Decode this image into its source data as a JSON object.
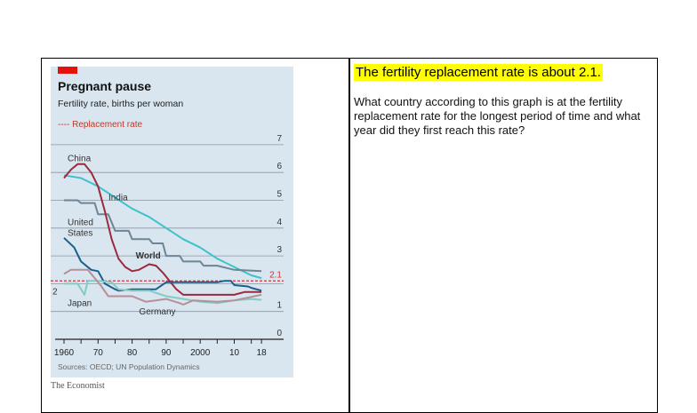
{
  "slide": {
    "highlight": "The fertility replacement rate is about 2.1.",
    "question": "What country according to this graph is at the fertility replacement rate for the longest period of time and what year did they  first reach this rate?",
    "credit": "The Economist"
  },
  "chart_data": {
    "type": "line",
    "title": "Pregnant pause",
    "subtitle": "Fertility rate, births per woman",
    "legend_label": "---- Replacement rate",
    "replacement_rate": 2.1,
    "replacement_label": "2.1",
    "source": "Sources: OECD; UN Population Dynamics",
    "xlim": [
      1960,
      2018
    ],
    "ylim": [
      0,
      7
    ],
    "x_ticks": [
      1960,
      1965,
      1970,
      1975,
      1980,
      1985,
      1990,
      1995,
      2000,
      2005,
      2010,
      2015,
      2018
    ],
    "x_tick_labels": [
      {
        "year": 1960,
        "label": "1960"
      },
      {
        "year": 1970,
        "label": "70"
      },
      {
        "year": 1980,
        "label": "80"
      },
      {
        "year": 1990,
        "label": "90"
      },
      {
        "year": 2000,
        "label": "2000"
      },
      {
        "year": 2010,
        "label": "10"
      },
      {
        "year": 2018,
        "label": "18"
      }
    ],
    "y_ticks": [
      0,
      1,
      2,
      3,
      4,
      5,
      6,
      7
    ],
    "y_tick_labels": [
      "0",
      "1",
      "2",
      "3",
      "4",
      "5",
      "6",
      "7"
    ],
    "grid": true,
    "colors": {
      "background": "#d9e5ef",
      "grid": "#8a97a3",
      "replacement": "#d0323a",
      "accent": "#e3120b"
    },
    "series": [
      {
        "name": "India",
        "color": "#3cc3c9",
        "label_at": [
          1972,
          5.0
        ],
        "points": [
          [
            1960,
            5.9
          ],
          [
            1965,
            5.8
          ],
          [
            1970,
            5.5
          ],
          [
            1975,
            5.1
          ],
          [
            1980,
            4.7
          ],
          [
            1985,
            4.4
          ],
          [
            1990,
            4.0
          ],
          [
            1995,
            3.6
          ],
          [
            2000,
            3.3
          ],
          [
            2005,
            2.9
          ],
          [
            2010,
            2.6
          ],
          [
            2015,
            2.3
          ],
          [
            2018,
            2.2
          ]
        ]
      },
      {
        "name": "World",
        "color": "#6e8593",
        "label_at": [
          1980,
          2.9
        ],
        "bold": true,
        "points": [
          [
            1960,
            5.0
          ],
          [
            1964,
            5.0
          ],
          [
            1965,
            4.9
          ],
          [
            1969,
            4.9
          ],
          [
            1970,
            4.5
          ],
          [
            1973,
            4.5
          ],
          [
            1975,
            3.9
          ],
          [
            1979,
            3.9
          ],
          [
            1980,
            3.6
          ],
          [
            1985,
            3.6
          ],
          [
            1986,
            3.45
          ],
          [
            1989,
            3.45
          ],
          [
            1990,
            3.0
          ],
          [
            1994,
            3.0
          ],
          [
            1995,
            2.8
          ],
          [
            2000,
            2.8
          ],
          [
            2001,
            2.65
          ],
          [
            2005,
            2.65
          ],
          [
            2010,
            2.5
          ],
          [
            2018,
            2.45
          ]
        ]
      },
      {
        "name": "China",
        "color": "#9b2a3e",
        "label_at": [
          1960,
          6.4
        ],
        "points": [
          [
            1960,
            5.8
          ],
          [
            1962,
            6.1
          ],
          [
            1964,
            6.3
          ],
          [
            1966,
            6.3
          ],
          [
            1968,
            6.0
          ],
          [
            1970,
            5.5
          ],
          [
            1972,
            4.6
          ],
          [
            1974,
            3.6
          ],
          [
            1976,
            2.9
          ],
          [
            1978,
            2.6
          ],
          [
            1980,
            2.45
          ],
          [
            1982,
            2.5
          ],
          [
            1985,
            2.7
          ],
          [
            1987,
            2.65
          ],
          [
            1989,
            2.4
          ],
          [
            1991,
            2.1
          ],
          [
            1993,
            1.8
          ],
          [
            1995,
            1.6
          ],
          [
            2000,
            1.6
          ],
          [
            2010,
            1.6
          ],
          [
            2013,
            1.7
          ],
          [
            2018,
            1.7
          ]
        ]
      },
      {
        "name": "United States",
        "color": "#1b5e8c",
        "label_at": [
          1960,
          4.1
        ],
        "points": [
          [
            1960,
            3.65
          ],
          [
            1963,
            3.3
          ],
          [
            1965,
            2.8
          ],
          [
            1968,
            2.5
          ],
          [
            1970,
            2.45
          ],
          [
            1972,
            2.0
          ],
          [
            1975,
            1.8
          ],
          [
            1976,
            1.75
          ],
          [
            1980,
            1.8
          ],
          [
            1987,
            1.8
          ],
          [
            1990,
            2.05
          ],
          [
            2000,
            2.05
          ],
          [
            2005,
            2.05
          ],
          [
            2007,
            2.1
          ],
          [
            2009,
            2.1
          ],
          [
            2010,
            1.95
          ],
          [
            2014,
            1.9
          ],
          [
            2015,
            1.85
          ],
          [
            2018,
            1.75
          ]
        ]
      },
      {
        "name": "Japan",
        "color": "#7fcdc4",
        "label_at": [
          1960,
          1.2
        ],
        "points": [
          [
            1960,
            2.0
          ],
          [
            1964,
            2.0
          ],
          [
            1966,
            1.6
          ],
          [
            1967,
            2.1
          ],
          [
            1970,
            2.1
          ],
          [
            1974,
            2.05
          ],
          [
            1976,
            1.8
          ],
          [
            1980,
            1.75
          ],
          [
            1985,
            1.75
          ],
          [
            1990,
            1.55
          ],
          [
            1995,
            1.45
          ],
          [
            2000,
            1.35
          ],
          [
            2005,
            1.3
          ],
          [
            2010,
            1.4
          ],
          [
            2015,
            1.45
          ],
          [
            2018,
            1.42
          ]
        ]
      },
      {
        "name": "Germany",
        "color": "#b78f98",
        "label_at": [
          1981,
          0.9
        ],
        "points": [
          [
            1960,
            2.35
          ],
          [
            1962,
            2.5
          ],
          [
            1967,
            2.5
          ],
          [
            1969,
            2.2
          ],
          [
            1971,
            1.9
          ],
          [
            1973,
            1.55
          ],
          [
            1980,
            1.55
          ],
          [
            1984,
            1.35
          ],
          [
            1987,
            1.4
          ],
          [
            1990,
            1.45
          ],
          [
            1994,
            1.3
          ],
          [
            1995,
            1.25
          ],
          [
            1998,
            1.4
          ],
          [
            2005,
            1.35
          ],
          [
            2010,
            1.4
          ],
          [
            2014,
            1.5
          ],
          [
            2018,
            1.6
          ]
        ]
      }
    ]
  }
}
